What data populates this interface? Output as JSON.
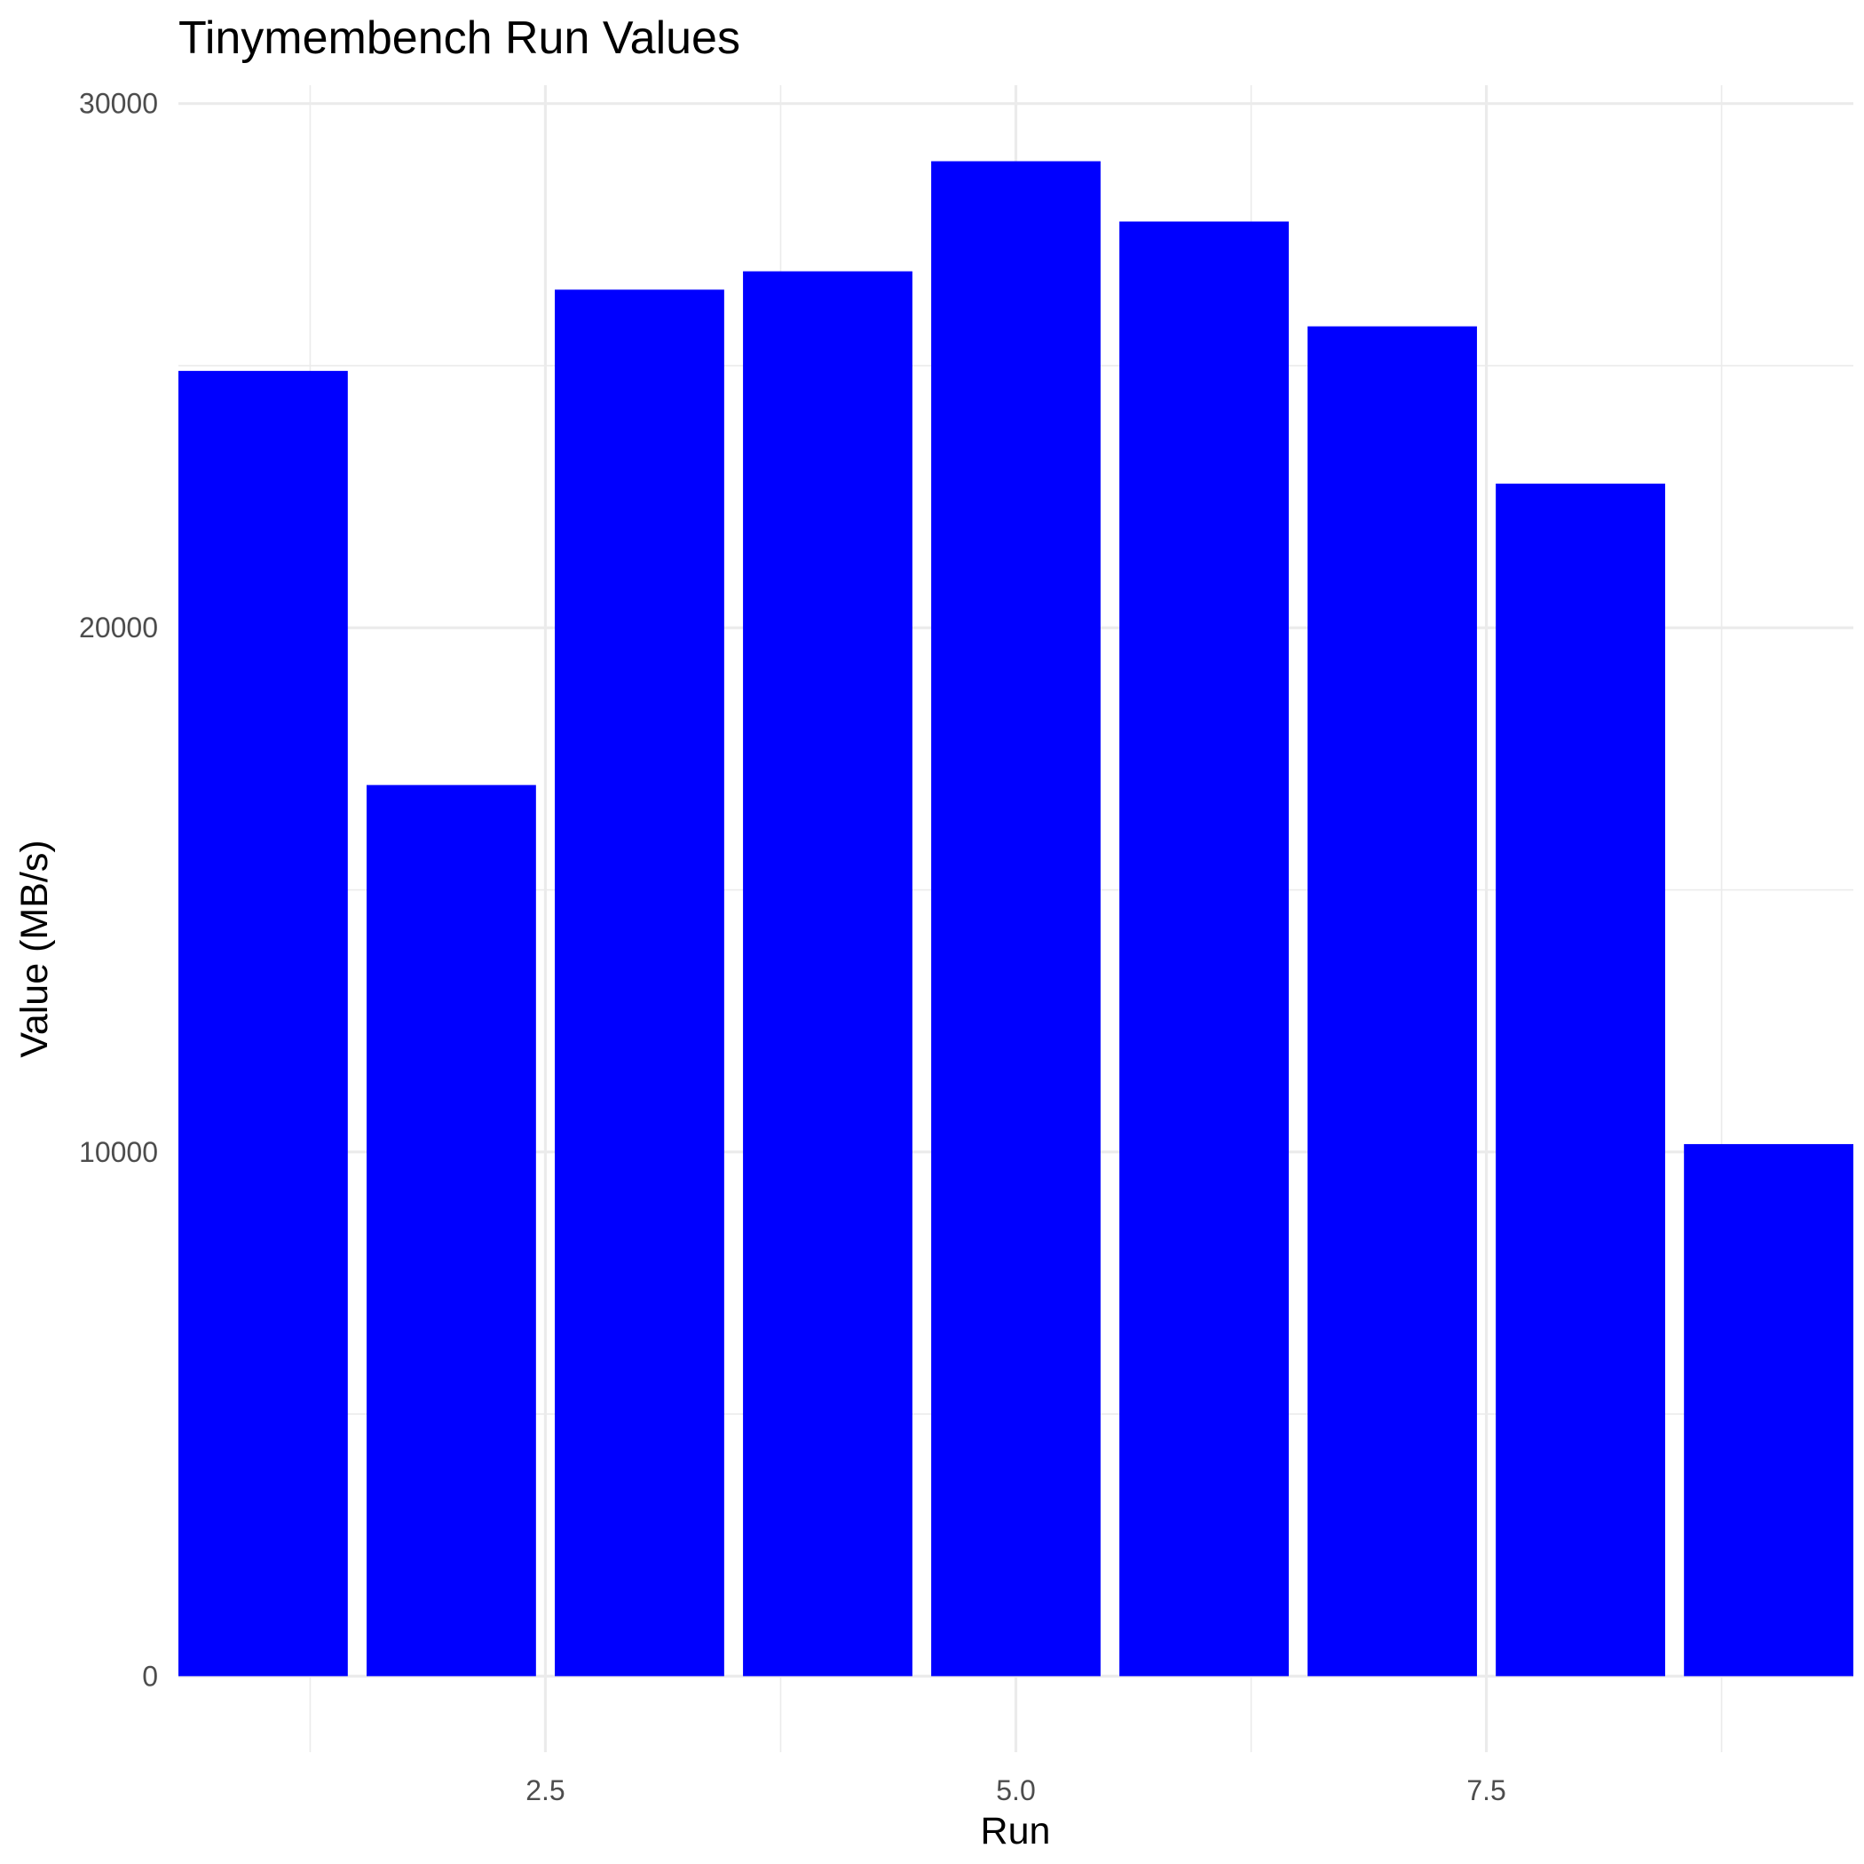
{
  "chart_data": {
    "type": "bar",
    "title": "Tinymembench Run Values",
    "xlabel": "Run",
    "ylabel": "Value (MB/s)",
    "x": [
      1,
      2,
      3,
      4,
      5,
      6,
      7,
      8,
      9
    ],
    "values": [
      24900,
      17000,
      26450,
      26800,
      28900,
      27750,
      25750,
      22750,
      10150
    ],
    "xlim": [
      0.55,
      9.45
    ],
    "ylim": [
      -1450,
      30350
    ],
    "x_ticks": [
      2.5,
      5.0,
      7.5
    ],
    "x_tick_labels": [
      "2.5",
      "5.0",
      "7.5"
    ],
    "x_minor_ticks": [
      1.25,
      3.75,
      6.25,
      8.75
    ],
    "y_ticks": [
      0,
      10000,
      20000,
      30000
    ],
    "y_tick_labels": [
      "0",
      "10000",
      "20000",
      "30000"
    ],
    "y_minor_ticks": [
      5000,
      15000,
      25000
    ],
    "grid": true,
    "legend": "none",
    "bar_color": "#0000ff",
    "grid_color": "#ebebeb",
    "background_color": "#ffffff"
  }
}
